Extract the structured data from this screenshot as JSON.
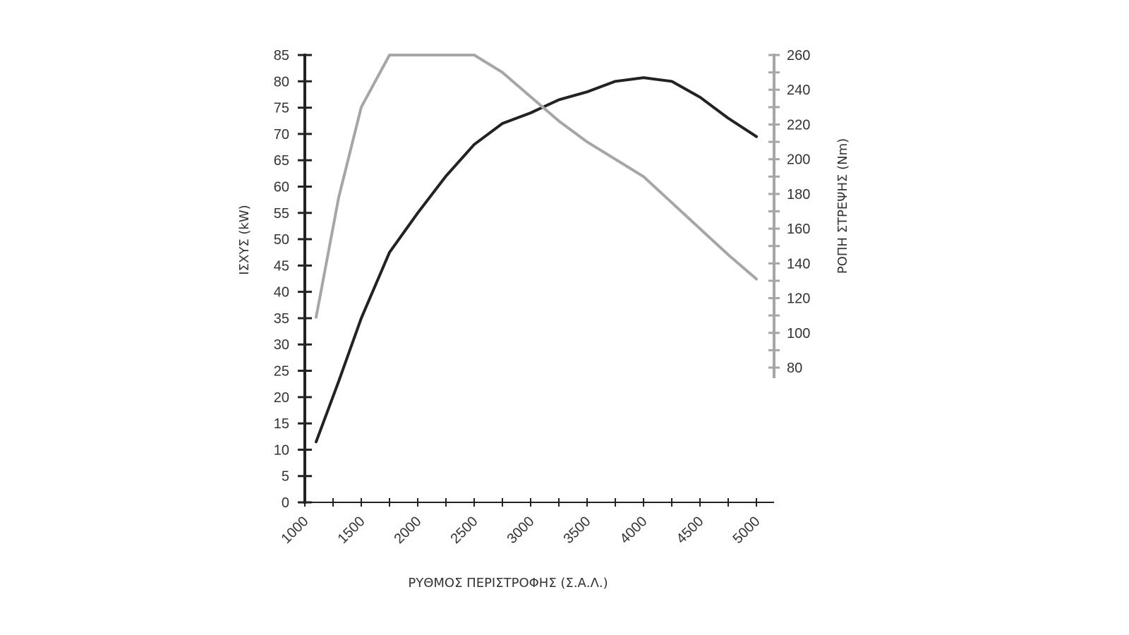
{
  "chart_data": {
    "type": "line",
    "title": "",
    "xlabel": "ΡΥΘΜΟΣ ΠΕΡΙΣΤΡΟΦΗΣ (Σ.Α.Λ.)",
    "ylabel_left": "ΙΣΧΥΣ (kW)",
    "ylabel_right": "ΡΟΠΗ ΣΤΡΕΨΗΣ (Nm)",
    "xlim": [
      1000,
      5000
    ],
    "ylim_left": [
      0,
      85
    ],
    "ylim_right": [
      80,
      260
    ],
    "x_ticks": [
      "1000",
      "1500",
      "2000",
      "2500",
      "3000",
      "3500",
      "4000",
      "4500",
      "5000"
    ],
    "y_left_ticks": [
      "0",
      "5",
      "10",
      "15",
      "20",
      "25",
      "30",
      "35",
      "40",
      "45",
      "50",
      "55",
      "60",
      "65",
      "70",
      "75",
      "80",
      "85"
    ],
    "y_right_ticks": [
      "80",
      "100",
      "120",
      "140",
      "160",
      "180",
      "200",
      "220",
      "240",
      "260"
    ],
    "grid": false,
    "series": [
      {
        "axis": "left",
        "color": "#222222",
        "points": [
          [
            1100,
            11.5
          ],
          [
            1300,
            23
          ],
          [
            1500,
            35
          ],
          [
            1750,
            47.5
          ],
          [
            2000,
            55
          ],
          [
            2250,
            62
          ],
          [
            2500,
            68
          ],
          [
            2750,
            72
          ],
          [
            3000,
            74
          ],
          [
            3250,
            76.5
          ],
          [
            3500,
            78
          ],
          [
            3750,
            80
          ],
          [
            4000,
            80.7
          ],
          [
            4250,
            80
          ],
          [
            4500,
            77
          ],
          [
            4750,
            73
          ],
          [
            5000,
            69.5
          ]
        ]
      },
      {
        "axis": "right",
        "color": "#a6a6a6",
        "points": [
          [
            1100,
            109
          ],
          [
            1300,
            178
          ],
          [
            1500,
            230
          ],
          [
            1750,
            260
          ],
          [
            2000,
            260
          ],
          [
            2250,
            260
          ],
          [
            2500,
            260
          ],
          [
            2750,
            250
          ],
          [
            3000,
            236
          ],
          [
            3250,
            222
          ],
          [
            3500,
            210
          ],
          [
            3750,
            200
          ],
          [
            4000,
            190
          ],
          [
            4250,
            175
          ],
          [
            4500,
            160
          ],
          [
            4750,
            145
          ],
          [
            5000,
            131
          ]
        ]
      }
    ]
  }
}
